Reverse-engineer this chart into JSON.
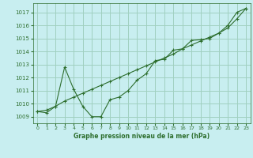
{
  "xlabel": "Graphe pression niveau de la mer (hPa)",
  "background_color": "#c8eef0",
  "grid_color": "#a0d0c0",
  "line_color": "#2d6e2d",
  "ylim": [
    1008.5,
    1017.7
  ],
  "xlim": [
    -0.5,
    23.5
  ],
  "yticks": [
    1009,
    1010,
    1011,
    1012,
    1013,
    1014,
    1015,
    1016,
    1017
  ],
  "xticks": [
    0,
    1,
    2,
    3,
    4,
    5,
    6,
    7,
    8,
    9,
    10,
    11,
    12,
    13,
    14,
    15,
    16,
    17,
    18,
    19,
    20,
    21,
    22,
    23
  ],
  "line1_x": [
    0,
    1,
    2,
    3,
    4,
    5,
    6,
    7,
    8,
    9,
    10,
    11,
    12,
    13,
    14,
    15,
    16,
    17,
    18,
    19,
    20,
    21,
    22,
    23
  ],
  "line1_y": [
    1009.4,
    1009.5,
    1009.8,
    1010.2,
    1010.5,
    1010.8,
    1011.1,
    1011.4,
    1011.7,
    1012.0,
    1012.3,
    1012.6,
    1012.9,
    1013.2,
    1013.5,
    1013.8,
    1014.2,
    1014.5,
    1014.8,
    1015.1,
    1015.4,
    1015.8,
    1016.5,
    1017.3
  ],
  "line2_x": [
    0,
    1,
    2,
    3,
    4,
    5,
    6,
    7,
    8,
    9,
    10,
    11,
    12,
    13,
    14,
    15,
    16,
    17,
    18,
    19,
    20,
    21,
    22,
    23
  ],
  "line2_y": [
    1009.4,
    1009.3,
    1009.8,
    1012.8,
    1011.1,
    1009.8,
    1009.0,
    1009.0,
    1010.3,
    1010.5,
    1011.0,
    1011.8,
    1012.3,
    1013.3,
    1013.4,
    1014.1,
    1014.2,
    1014.85,
    1014.9,
    1015.0,
    1015.4,
    1016.0,
    1017.0,
    1017.3
  ]
}
